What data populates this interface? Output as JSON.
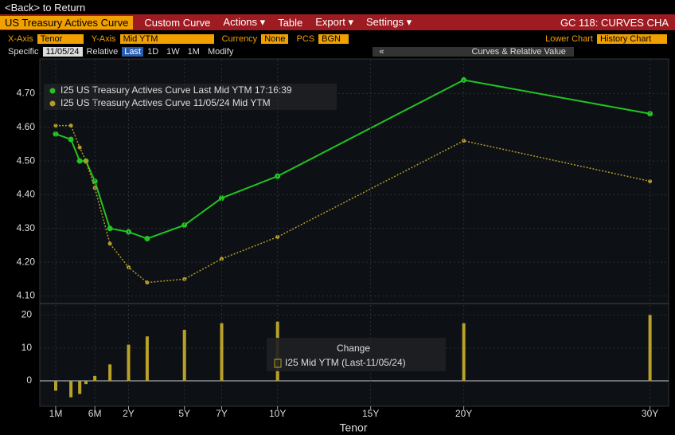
{
  "back_link": "<Back> to Return",
  "toolbar": {
    "title": "US Treasury Actives Curve",
    "items": [
      "Custom Curve",
      "Actions ▾",
      "Table",
      "Export ▾",
      "Settings ▾"
    ],
    "right": "GC 118: CURVES CHA"
  },
  "settings": [
    {
      "label": "X-Axis",
      "value": "Tenor"
    },
    {
      "label": "Y-Axis",
      "value": "Mid YTM"
    },
    {
      "label": "Currency",
      "value": "None"
    },
    {
      "label": "PCS",
      "value": "BGN"
    },
    {
      "label": "Lower Chart",
      "value": "History Chart"
    }
  ],
  "row2": {
    "specific": "Specific",
    "date": "11/05/24",
    "relative": "Relative",
    "options": [
      "Last",
      "1D",
      "1W",
      "1M",
      "Modify"
    ],
    "collapse": "«",
    "panel": "Curves & Relative Value"
  },
  "chart_data": [
    {
      "type": "line",
      "x": [
        0.083,
        0.167,
        0.25,
        0.333,
        0.5,
        1,
        2,
        3,
        5,
        7,
        10,
        20,
        30
      ],
      "series": [
        {
          "name": "I25 US Treasury Actives Curve Last Mid YTM 17:16:39",
          "color": "#22c322",
          "values": [
            4.58,
            4.564,
            4.5,
            4.5,
            4.44,
            4.3,
            4.29,
            4.27,
            4.31,
            4.39,
            4.455,
            4.74,
            4.64
          ]
        },
        {
          "name": "I25 US Treasury Actives Curve 11/05/24 Mid YTM",
          "color": "#b39b2a",
          "values": [
            4.605,
            4.605,
            4.54,
            4.5,
            4.42,
            4.255,
            4.185,
            4.14,
            4.15,
            4.21,
            4.275,
            4.56,
            4.44
          ]
        }
      ],
      "xlim": [
        0.04,
        31
      ],
      "ylim": [
        4.08,
        4.8
      ],
      "yticks": [
        {
          "value": 4.1,
          "label": "4.10"
        },
        {
          "value": 4.2,
          "label": "4.20"
        },
        {
          "value": 4.3,
          "label": "4.30"
        },
        {
          "value": 4.4,
          "label": "4.40"
        },
        {
          "value": 4.5,
          "label": "4.50"
        },
        {
          "value": 4.6,
          "label": "4.60"
        },
        {
          "value": 4.7,
          "label": "4.70"
        }
      ],
      "grid": true,
      "legend": "top-left"
    },
    {
      "type": "bar",
      "x": [
        0.083,
        0.167,
        0.25,
        0.333,
        0.5,
        1,
        2,
        3,
        5,
        7,
        10,
        20,
        30
      ],
      "values": [
        -3,
        -5,
        -4,
        -1,
        1.5,
        5,
        11,
        13.5,
        15.5,
        17.5,
        18,
        17.5,
        20
      ],
      "color": "#b8a22a",
      "legend_title": "Change",
      "series_name": "I25 Mid YTM (Last-11/05/24)",
      "xlim": [
        0.04,
        31
      ],
      "ylim": [
        -7.5,
        23
      ],
      "yticks": [
        0,
        10,
        20
      ],
      "xticks": [
        {
          "value": 0.083,
          "label": "1M"
        },
        {
          "value": 0.5,
          "label": "6M"
        },
        {
          "value": 2,
          "label": "2Y"
        },
        {
          "value": 5,
          "label": "5Y"
        },
        {
          "value": 7,
          "label": "7Y"
        },
        {
          "value": 10,
          "label": "10Y"
        },
        {
          "value": 15,
          "label": "15Y"
        },
        {
          "value": 20,
          "label": "20Y"
        },
        {
          "value": 30,
          "label": "30Y"
        }
      ],
      "x_label": "Tenor",
      "grid": true
    }
  ]
}
